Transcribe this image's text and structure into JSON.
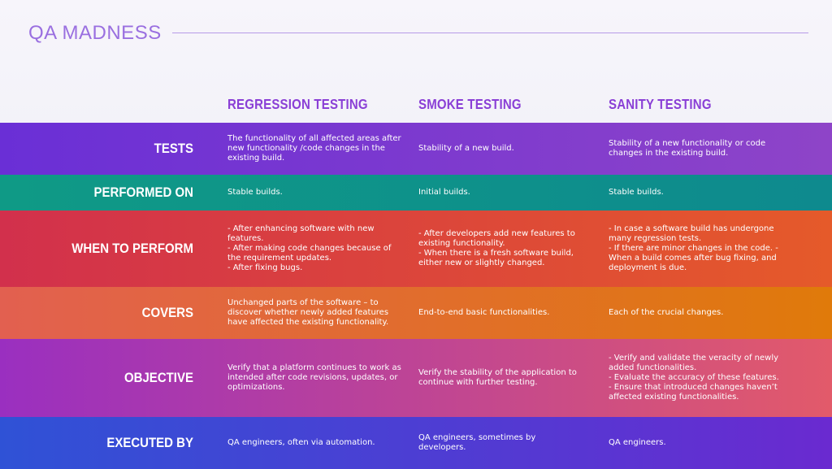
{
  "brand": "QA MADNESS",
  "columns": [
    "REGRESSION TESTING",
    "SMOKE TESTING",
    "SANITY TESTING"
  ],
  "rows": [
    {
      "label": "TESTS",
      "cells": [
        "The functionality of all affected areas after\nnew functionality /code changes in the\nexisting build.",
        "Stability of a new build.",
        "Stability of a new functionality or code\nchanges in the existing build."
      ]
    },
    {
      "label": "PERFORMED ON",
      "cells": [
        "Stable builds.",
        "Initial builds.",
        "Stable builds."
      ]
    },
    {
      "label": "WHEN TO PERFORM",
      "cells": [
        "- After enhancing software with new\nfeatures.\n- After making code changes because of\nthe requirement updates.\n- After fixing bugs.",
        "- After developers add new features to\nexisting functionality.\n- When there is a fresh software build,\neither new or slightly changed.",
        "- In case a software build has undergone\nmany regression tests.\n- If there are minor changes in the code. -\nWhen a build comes after bug fixing, and\ndeployment is due."
      ]
    },
    {
      "label": "COVERS",
      "cells": [
        "Unchanged parts of the software – to\ndiscover whether newly added features\nhave affected the existing functionality.",
        "End-to-end basic functionalities.",
        "Each of the crucial changes."
      ]
    },
    {
      "label": "OBJECTIVE",
      "cells": [
        "Verify that a platform continues to work as\nintended after code revisions, updates, or\noptimizations.",
        "Verify the stability of the application to\ncontinue with further testing.",
        "- Verify and validate the veracity of newly\nadded functionalities.\n- Evaluate the accuracy of these features.\n- Ensure that introduced changes haven’t\naffected existing functionalities."
      ]
    },
    {
      "label": "EXECUTED BY",
      "cells": [
        "QA engineers, often via automation.",
        "QA engineers, sometimes by developers.",
        "QA engineers."
      ]
    }
  ],
  "colors": {
    "brand": "#9a6fe0",
    "header": "#8a3fd6",
    "tests": [
      "#6a2fd6",
      "#8e44c8"
    ],
    "performed_on": [
      "#0f9a86",
      "#0e8a8e"
    ],
    "when_to_perform": [
      "#d2304c",
      "#e55a2a"
    ],
    "covers": [
      "#e26050",
      "#e07a0a"
    ],
    "objective": [
      "#9a2fc0",
      "#e25a6a"
    ],
    "executed_by": [
      "#2f52d6",
      "#6a2ad0"
    ]
  }
}
